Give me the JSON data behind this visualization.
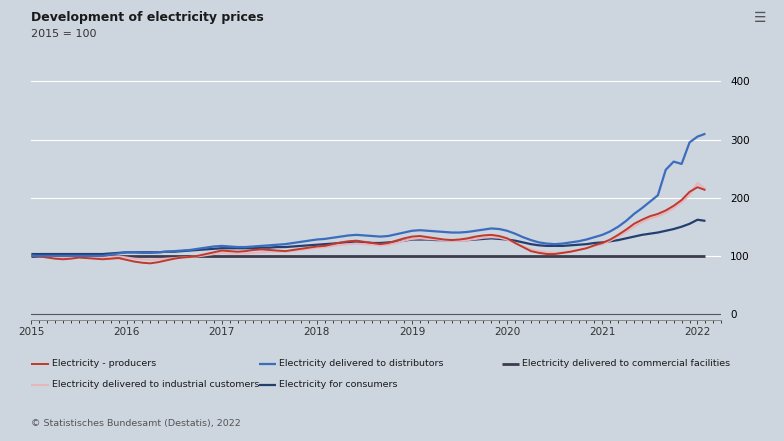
{
  "title": "Development of electricity prices",
  "subtitle": "2015 = 100",
  "background_color": "#cdd5de",
  "plot_bg_color": "#cdd5de",
  "yticks": [
    0,
    100,
    200,
    300,
    400
  ],
  "ylim": [
    -10,
    430
  ],
  "xlim": [
    2015.0,
    2022.25
  ],
  "xticks": [
    2015,
    2016,
    2017,
    2018,
    2019,
    2020,
    2021,
    2022
  ],
  "series": {
    "commercial": {
      "color": "#3c3c4e",
      "lw": 2.0,
      "zorder": 3,
      "y": [
        100,
        100,
        100,
        100,
        100,
        100,
        100,
        100,
        100,
        100,
        100,
        100,
        100,
        100,
        100,
        100,
        100,
        100,
        100,
        100,
        100,
        100,
        100,
        100,
        100,
        100,
        100,
        100,
        100,
        100,
        100,
        100,
        100,
        100,
        100,
        100,
        100,
        100,
        100,
        100,
        100,
        100,
        100,
        100,
        100,
        100,
        100,
        100,
        100,
        100,
        100,
        100,
        100,
        100,
        100,
        100,
        100,
        100,
        100,
        100,
        100,
        100,
        100,
        100,
        100,
        100,
        100,
        100,
        100,
        100,
        100,
        100,
        100,
        100,
        100,
        100,
        100,
        100,
        100,
        100,
        100,
        100,
        100,
        100,
        100,
        100
      ]
    },
    "consumers": {
      "color": "#243f6e",
      "lw": 1.6,
      "zorder": 4,
      "y": [
        103,
        103,
        103,
        103,
        103,
        103,
        103,
        103,
        103,
        103,
        104,
        105,
        106,
        106,
        106,
        106,
        106,
        107,
        107,
        108,
        109,
        110,
        111,
        112,
        113,
        113,
        113,
        113,
        113,
        114,
        114,
        115,
        115,
        116,
        117,
        118,
        119,
        120,
        121,
        122,
        123,
        123,
        123,
        122,
        122,
        123,
        124,
        126,
        128,
        128,
        128,
        127,
        127,
        127,
        127,
        127,
        128,
        129,
        130,
        129,
        128,
        126,
        123,
        120,
        118,
        117,
        117,
        117,
        118,
        119,
        120,
        122,
        123,
        125,
        127,
        130,
        133,
        136,
        138,
        140,
        143,
        146,
        150,
        155,
        162,
        160
      ]
    },
    "industrial": {
      "color": "#e8b4bc",
      "lw": 1.5,
      "zorder": 5,
      "y": [
        100,
        99,
        98,
        97,
        97,
        97,
        97,
        97,
        97,
        97,
        98,
        99,
        97,
        95,
        94,
        93,
        94,
        95,
        96,
        97,
        98,
        99,
        101,
        103,
        105,
        104,
        104,
        104,
        105,
        106,
        107,
        107,
        107,
        108,
        110,
        112,
        114,
        115,
        117,
        119,
        120,
        121,
        120,
        119,
        118,
        119,
        122,
        126,
        129,
        130,
        129,
        128,
        127,
        126,
        126,
        127,
        129,
        131,
        132,
        131,
        128,
        122,
        116,
        111,
        108,
        106,
        105,
        106,
        108,
        110,
        113,
        117,
        120,
        126,
        133,
        141,
        150,
        158,
        164,
        168,
        174,
        182,
        192,
        205,
        225,
        215
      ]
    },
    "producers": {
      "color": "#c0392b",
      "lw": 1.4,
      "zorder": 6,
      "y": [
        100,
        99,
        97,
        95,
        94,
        95,
        97,
        96,
        95,
        94,
        95,
        96,
        93,
        90,
        88,
        87,
        89,
        92,
        95,
        97,
        98,
        100,
        103,
        106,
        109,
        108,
        107,
        108,
        110,
        111,
        110,
        109,
        108,
        110,
        112,
        114,
        116,
        117,
        120,
        123,
        125,
        126,
        124,
        122,
        120,
        122,
        126,
        130,
        133,
        134,
        132,
        130,
        128,
        127,
        128,
        130,
        133,
        135,
        136,
        134,
        130,
        122,
        115,
        108,
        105,
        103,
        103,
        105,
        107,
        110,
        113,
        118,
        122,
        128,
        136,
        145,
        155,
        162,
        168,
        172,
        178,
        186,
        196,
        210,
        218,
        213
      ]
    },
    "distributors": {
      "color": "#3b6dbf",
      "lw": 1.6,
      "zorder": 7,
      "y": [
        100,
        100,
        100,
        100,
        100,
        100,
        100,
        100,
        100,
        100,
        102,
        104,
        106,
        106,
        105,
        105,
        106,
        107,
        108,
        109,
        110,
        112,
        114,
        116,
        117,
        116,
        115,
        115,
        116,
        117,
        118,
        119,
        120,
        122,
        124,
        126,
        128,
        129,
        131,
        133,
        135,
        136,
        135,
        134,
        133,
        134,
        137,
        140,
        143,
        144,
        143,
        142,
        141,
        140,
        140,
        141,
        143,
        145,
        147,
        146,
        143,
        138,
        132,
        127,
        123,
        121,
        120,
        121,
        123,
        125,
        128,
        132,
        136,
        142,
        150,
        160,
        172,
        182,
        193,
        204,
        248,
        262,
        258,
        295,
        305,
        310
      ]
    }
  },
  "legend_rows": [
    [
      {
        "label": "Electricity - producers",
        "color": "#c0392b",
        "lw": 1.4
      },
      {
        "label": "Electricity delivered to distributors",
        "color": "#3b6dbf",
        "lw": 1.6
      },
      {
        "label": "Electricity delivered to commercial facilities",
        "color": "#3c3c4e",
        "lw": 2.0
      }
    ],
    [
      {
        "label": "Electricity delivered to industrial customers",
        "color": "#e8b4bc",
        "lw": 1.5
      },
      {
        "label": "Electricity for consumers",
        "color": "#243f6e",
        "lw": 1.6
      }
    ]
  ],
  "source_text": "© Statistisches Bundesamt (Destatis), 2022"
}
